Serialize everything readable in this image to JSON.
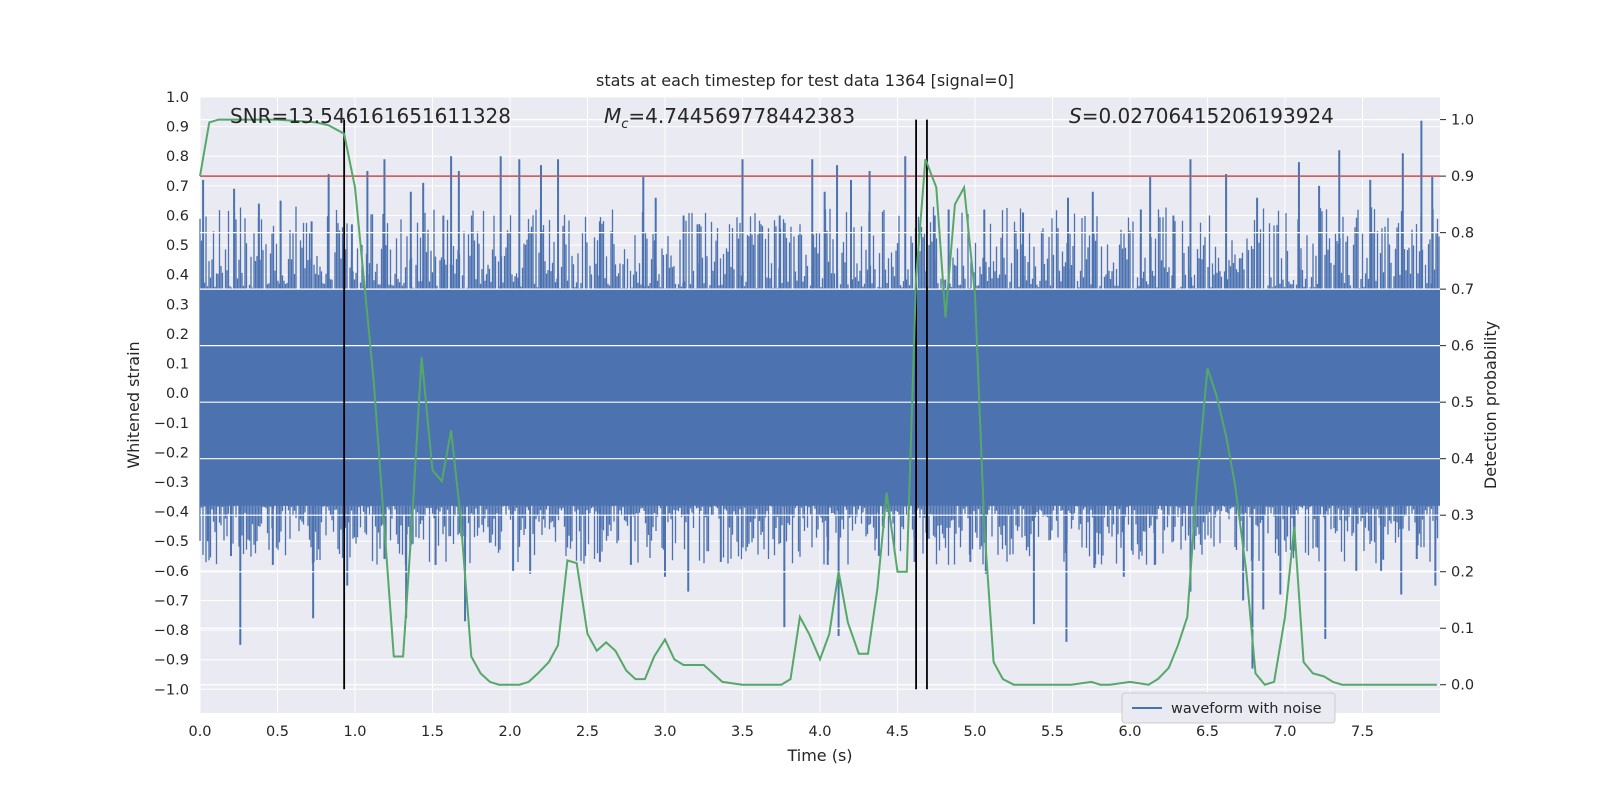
{
  "chart_data": {
    "type": "line",
    "title": "stats at each timestep for test data 1364 [signal=0]",
    "xlabel": "Time (s)",
    "ylabel": "Whitened strain",
    "ylabel_right": "Detection probability",
    "xlim": [
      0,
      8.0
    ],
    "ylim": [
      -1.08,
      1.0
    ],
    "ylim_right": [
      -0.05,
      1.04
    ],
    "xticks": [
      0.0,
      0.5,
      1.0,
      1.5,
      2.0,
      2.5,
      3.0,
      3.5,
      4.0,
      4.5,
      5.0,
      5.5,
      6.0,
      6.5,
      7.0,
      7.5
    ],
    "xtick_labels": [
      "0.0",
      "0.5",
      "1.0",
      "1.5",
      "2.0",
      "2.5",
      "3.0",
      "3.5",
      "4.0",
      "4.5",
      "5.0",
      "5.5",
      "6.0",
      "6.5",
      "7.0",
      "7.5"
    ],
    "yticks": [
      -1.0,
      -0.9,
      -0.8,
      -0.7,
      -0.6,
      -0.5,
      -0.4,
      -0.3,
      -0.2,
      -0.1,
      0.0,
      0.1,
      0.2,
      0.3,
      0.4,
      0.5,
      0.6,
      0.7,
      0.8,
      0.9,
      1.0
    ],
    "ytick_labels": [
      "−1.0",
      "−0.9",
      "−0.8",
      "−0.7",
      "−0.6",
      "−0.5",
      "−0.4",
      "−0.3",
      "−0.2",
      "−0.1",
      "0.0",
      "0.1",
      "0.2",
      "0.3",
      "0.4",
      "0.5",
      "0.6",
      "0.7",
      "0.8",
      "0.9",
      "1.0"
    ],
    "yticks_right": [
      0.0,
      0.1,
      0.2,
      0.3,
      0.4,
      0.5,
      0.6,
      0.7,
      0.8,
      0.9,
      1.0
    ],
    "ytick_labels_right": [
      "0.0",
      "0.1",
      "0.2",
      "0.3",
      "0.4",
      "0.5",
      "0.6",
      "0.7",
      "0.8",
      "0.9",
      "1.0"
    ],
    "grid": true,
    "legend": {
      "entries": [
        "waveform with noise"
      ],
      "placement": "lower-right"
    },
    "annotations": {
      "snr": "SNR=13.546161651611328",
      "mc_symbol": "M",
      "mc_sub": "c",
      "mc_value": "=4.744569778442383",
      "s_symbol": "S",
      "s_value": "=0.02706415206193924"
    },
    "threshold": {
      "value": 0.9,
      "axis": "right",
      "color": "#c44e52"
    },
    "vlines": [
      0.93,
      4.62,
      4.69
    ],
    "waveform": {
      "name": "waveform with noise",
      "color": "#4c72b0",
      "band_lower": -0.38,
      "band_upper": 0.35,
      "upper_spikes": [
        [
          0.02,
          0.72
        ],
        [
          0.22,
          0.69
        ],
        [
          0.38,
          0.64
        ],
        [
          0.52,
          0.65
        ],
        [
          0.72,
          0.58
        ],
        [
          0.83,
          0.74
        ],
        [
          0.98,
          0.57
        ],
        [
          1.08,
          0.75
        ],
        [
          1.19,
          0.79
        ],
        [
          1.36,
          0.68
        ],
        [
          1.44,
          0.71
        ],
        [
          1.57,
          0.6
        ],
        [
          1.62,
          0.8
        ],
        [
          1.67,
          0.75
        ],
        [
          1.94,
          0.8
        ],
        [
          2.06,
          0.79
        ],
        [
          2.2,
          0.77
        ],
        [
          2.31,
          0.79
        ],
        [
          2.58,
          0.58
        ],
        [
          2.86,
          0.73
        ],
        [
          2.94,
          0.66
        ],
        [
          3.12,
          0.6
        ],
        [
          3.21,
          0.57
        ],
        [
          3.5,
          0.79
        ],
        [
          3.74,
          0.6
        ],
        [
          3.95,
          0.79
        ],
        [
          4.03,
          0.68
        ],
        [
          4.11,
          0.77
        ],
        [
          4.2,
          0.72
        ],
        [
          4.32,
          0.75
        ],
        [
          4.55,
          0.8
        ],
        [
          4.74,
          0.6
        ],
        [
          4.83,
          0.62
        ],
        [
          5.06,
          0.62
        ],
        [
          5.31,
          0.61
        ],
        [
          5.6,
          0.66
        ],
        [
          5.76,
          0.68
        ],
        [
          6.07,
          0.62
        ],
        [
          6.13,
          0.73
        ],
        [
          6.28,
          0.6
        ],
        [
          6.39,
          0.79
        ],
        [
          6.62,
          0.74
        ],
        [
          6.82,
          0.66
        ],
        [
          7.09,
          0.78
        ],
        [
          7.22,
          0.7
        ],
        [
          7.35,
          0.82
        ],
        [
          7.55,
          0.72
        ],
        [
          7.76,
          0.81
        ],
        [
          7.88,
          0.92
        ],
        [
          7.95,
          0.73
        ]
      ],
      "lower_spikes": [
        [
          0.05,
          -0.5
        ],
        [
          0.2,
          -0.55
        ],
        [
          0.26,
          -0.85
        ],
        [
          0.47,
          -0.58
        ],
        [
          0.73,
          -0.76
        ],
        [
          0.95,
          -0.65
        ],
        [
          1.19,
          -0.56
        ],
        [
          1.33,
          -0.76
        ],
        [
          1.52,
          -0.58
        ],
        [
          1.71,
          -0.77
        ],
        [
          2.02,
          -0.6
        ],
        [
          2.13,
          -0.61
        ],
        [
          2.58,
          -0.57
        ],
        [
          2.78,
          -0.58
        ],
        [
          3.0,
          -0.62
        ],
        [
          3.15,
          -0.67
        ],
        [
          3.36,
          -0.57
        ],
        [
          3.77,
          -0.79
        ],
        [
          4.05,
          -0.58
        ],
        [
          4.12,
          -0.82
        ],
        [
          4.38,
          -0.55
        ],
        [
          4.61,
          -0.57
        ],
        [
          4.97,
          -0.57
        ],
        [
          5.07,
          -0.61
        ],
        [
          5.38,
          -0.78
        ],
        [
          5.59,
          -0.84
        ],
        [
          5.77,
          -0.59
        ],
        [
          5.96,
          -0.62
        ],
        [
          6.16,
          -0.58
        ],
        [
          6.39,
          -0.67
        ],
        [
          6.73,
          -0.7
        ],
        [
          6.79,
          -0.93
        ],
        [
          6.86,
          -0.73
        ],
        [
          6.97,
          -0.68
        ],
        [
          7.06,
          -0.52
        ],
        [
          7.26,
          -0.83
        ],
        [
          7.46,
          -0.6
        ],
        [
          7.62,
          -0.6
        ],
        [
          7.75,
          -0.68
        ],
        [
          7.85,
          -0.56
        ],
        [
          7.97,
          -0.65
        ]
      ]
    },
    "detection_probability": {
      "axis": "right",
      "color": "#55a868",
      "x": [
        0.0,
        0.06,
        0.12,
        0.25,
        0.5,
        0.75,
        0.83,
        0.93,
        1.0,
        1.12,
        1.25,
        1.31,
        1.37,
        1.43,
        1.5,
        1.56,
        1.62,
        1.68,
        1.75,
        1.81,
        1.87,
        1.93,
        2.0,
        2.06,
        2.12,
        2.18,
        2.25,
        2.31,
        2.37,
        2.43,
        2.5,
        2.56,
        2.62,
        2.68,
        2.75,
        2.81,
        2.87,
        2.93,
        3.0,
        3.06,
        3.12,
        3.25,
        3.37,
        3.5,
        3.62,
        3.75,
        3.81,
        3.87,
        3.93,
        4.0,
        4.06,
        4.12,
        4.18,
        4.25,
        4.31,
        4.37,
        4.43,
        4.5,
        4.56,
        4.62,
        4.68,
        4.75,
        4.81,
        4.87,
        4.93,
        5.0,
        5.06,
        5.12,
        5.18,
        5.25,
        5.37,
        5.5,
        5.62,
        5.75,
        5.81,
        5.87,
        6.0,
        6.12,
        6.18,
        6.25,
        6.31,
        6.37,
        6.43,
        6.5,
        6.56,
        6.62,
        6.68,
        6.75,
        6.81,
        6.87,
        6.93,
        7.0,
        7.06,
        7.12,
        7.18,
        7.25,
        7.31,
        7.37,
        7.5,
        7.62,
        7.75,
        7.87,
        7.98
      ],
      "y": [
        0.9,
        0.995,
        1.0,
        1.0,
        1.0,
        0.995,
        0.99,
        0.975,
        0.88,
        0.54,
        0.05,
        0.05,
        0.3,
        0.58,
        0.38,
        0.36,
        0.45,
        0.3,
        0.05,
        0.02,
        0.005,
        0.0,
        0.0,
        0.0,
        0.005,
        0.02,
        0.04,
        0.07,
        0.22,
        0.215,
        0.09,
        0.06,
        0.075,
        0.06,
        0.025,
        0.01,
        0.01,
        0.05,
        0.08,
        0.045,
        0.035,
        0.035,
        0.005,
        0.0,
        0.0,
        0.0,
        0.01,
        0.12,
        0.09,
        0.045,
        0.09,
        0.2,
        0.11,
        0.055,
        0.055,
        0.17,
        0.34,
        0.2,
        0.2,
        0.72,
        0.93,
        0.88,
        0.65,
        0.85,
        0.88,
        0.69,
        0.28,
        0.04,
        0.01,
        0.0,
        0.0,
        0.0,
        0.0,
        0.005,
        0.0,
        0.0,
        0.005,
        0.0,
        0.01,
        0.03,
        0.07,
        0.12,
        0.35,
        0.56,
        0.51,
        0.44,
        0.35,
        0.2,
        0.02,
        0.0,
        0.005,
        0.12,
        0.28,
        0.04,
        0.02,
        0.015,
        0.005,
        0.0,
        0.0,
        0.0,
        0.0,
        0.0,
        0.0
      ]
    }
  }
}
